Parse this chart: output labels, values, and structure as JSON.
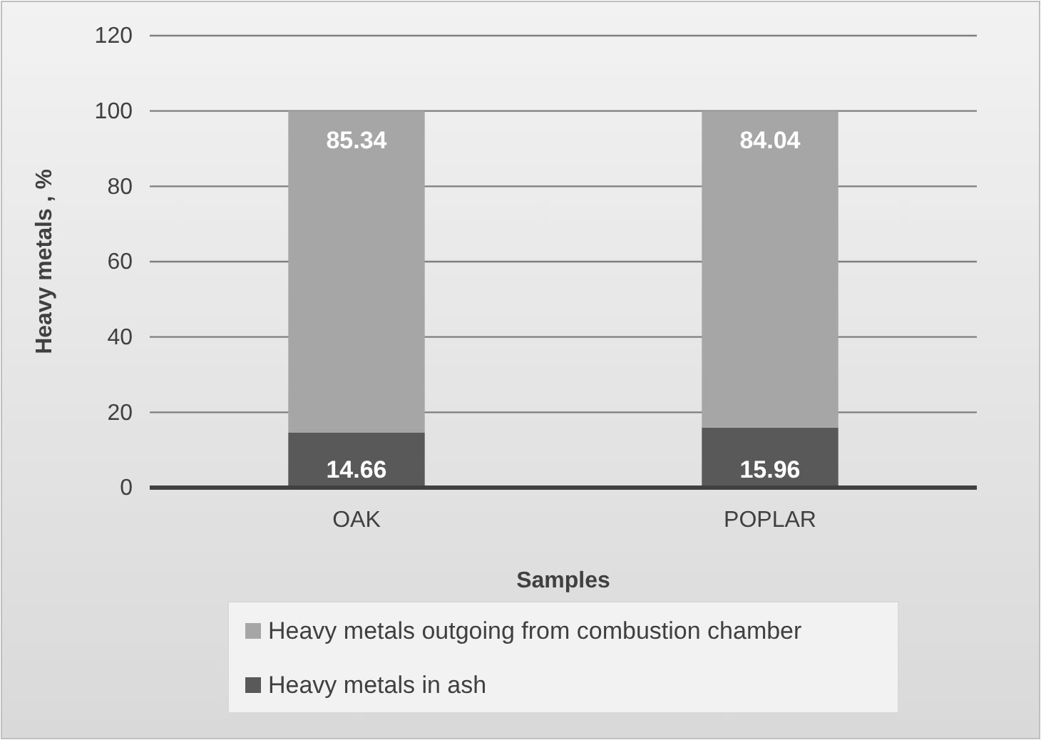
{
  "chart_data": {
    "type": "bar",
    "stacked": true,
    "xlabel": "Samples",
    "ylabel": "Heavy metals , %",
    "categories": [
      "OAK",
      "POPLAR"
    ],
    "series": [
      {
        "name": "Heavy metals in ash",
        "color": "#595959",
        "values": [
          14.66,
          15.96
        ]
      },
      {
        "name": "Heavy metals outgoing from combustion chamber",
        "color": "#a6a6a6",
        "values": [
          85.34,
          84.04
        ]
      }
    ],
    "ylim": [
      0,
      120
    ],
    "yticks": [
      0,
      20,
      40,
      60,
      80,
      100,
      120
    ],
    "grid": "y",
    "legend": "bottom",
    "data_labels": true
  }
}
